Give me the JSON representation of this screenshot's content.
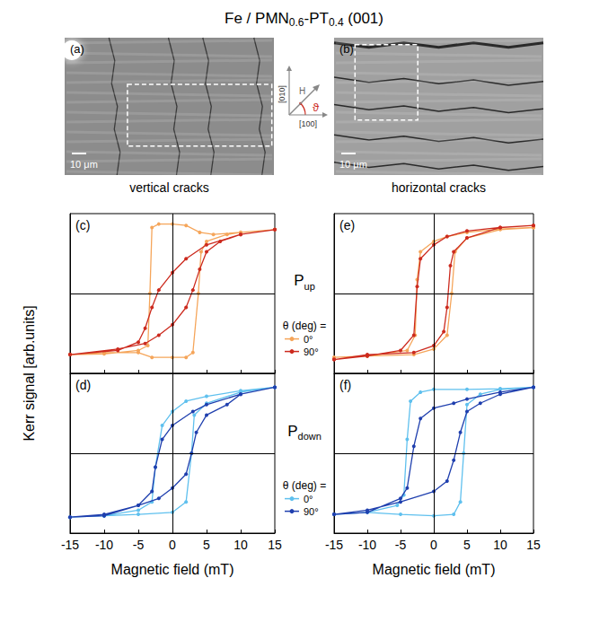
{
  "title_parts": [
    {
      "text": "Fe / PMN"
    },
    {
      "text": "0.6",
      "sub": true
    },
    {
      "text": "-PT"
    },
    {
      "text": "0.4",
      "sub": true
    },
    {
      "text": " (001)"
    }
  ],
  "images": [
    {
      "label": "(a)",
      "scale_bar": "10 μm",
      "caption": "vertical cracks",
      "cracks": "vertical"
    },
    {
      "label": "(b)",
      "scale_bar": "10 μm",
      "caption": "horizontal cracks",
      "cracks": "horizontal"
    }
  ],
  "inset": {
    "x_axis": "[100]",
    "y_axis": "[010]",
    "field": "H",
    "angle": "ϑ"
  },
  "y_label": "Kerr signal [arb.units]",
  "chart_data": [
    {
      "type": "line",
      "panel": "(c)",
      "annotation": {
        "text": "P",
        "sub": "up"
      },
      "legend": "right",
      "legend_title": "θ (deg) =",
      "xlim": [
        -15,
        15
      ],
      "xticks": [
        -15,
        -10,
        -5,
        0,
        5,
        10,
        15
      ],
      "ylim": [
        -1.15,
        1.15
      ],
      "tick_labels": false,
      "grid": false,
      "series": [
        {
          "name": "0°",
          "color": "#f5a55a",
          "marker": "circle",
          "x": [
            15,
            10,
            6,
            4,
            2,
            0,
            -2,
            -3,
            -3.3,
            -3.6,
            -5,
            -10,
            -15,
            -15,
            -10,
            -5,
            -3,
            0,
            2,
            3,
            3.8,
            4.2,
            5,
            8,
            10,
            15
          ],
          "values": [
            0.92,
            0.88,
            0.85,
            0.88,
            0.98,
            1.0,
            1.0,
            0.95,
            0,
            -0.75,
            -0.82,
            -0.87,
            -0.88,
            -0.88,
            -0.85,
            -0.85,
            -0.92,
            -0.92,
            -0.92,
            -0.85,
            0,
            0.6,
            0.75,
            0.85,
            0.88,
            0.92
          ]
        },
        {
          "name": "90°",
          "color": "#cc2a1e",
          "marker": "circle",
          "x": [
            15,
            10,
            5,
            2,
            0,
            -2,
            -3,
            -4,
            -5,
            -8,
            -15,
            -15,
            -8,
            -4,
            -2,
            0,
            2,
            3,
            4,
            5,
            7,
            10,
            15
          ],
          "values": [
            0.92,
            0.85,
            0.7,
            0.5,
            0.3,
            0.05,
            -0.2,
            -0.5,
            -0.7,
            -0.82,
            -0.88,
            -0.88,
            -0.8,
            -0.72,
            -0.6,
            -0.45,
            -0.2,
            0.05,
            0.35,
            0.6,
            0.75,
            0.85,
            0.92
          ]
        }
      ]
    },
    {
      "type": "line",
      "panel": "(d)",
      "annotation": {
        "text": "P",
        "sub": "down"
      },
      "legend": "right",
      "legend_title": "θ (deg) =",
      "xlabel": "Magnetic field (mT)",
      "xlim": [
        -15,
        15
      ],
      "xticks": [
        -15,
        -10,
        -5,
        0,
        5,
        10,
        15
      ],
      "ylim": [
        -1.15,
        1.15
      ],
      "tick_labels": "x",
      "grid": false,
      "series": [
        {
          "name": "0°",
          "color": "#5fc0ee",
          "marker": "circle",
          "x": [
            15,
            10,
            5,
            2,
            0,
            -1.5,
            -2.5,
            -3,
            -5,
            -10,
            -15,
            -15,
            -10,
            -5,
            0,
            2,
            2.8,
            3.2,
            5,
            10,
            15
          ],
          "values": [
            0.95,
            0.9,
            0.82,
            0.75,
            0.6,
            0.4,
            -0.2,
            -0.7,
            -0.82,
            -0.9,
            -0.92,
            -0.92,
            -0.9,
            -0.88,
            -0.85,
            -0.7,
            0,
            0.55,
            0.72,
            0.88,
            0.95
          ]
        },
        {
          "name": "90°",
          "color": "#1f3fae",
          "marker": "circle",
          "x": [
            15,
            10,
            5,
            3,
            0,
            -1.5,
            -2.5,
            -3,
            -5,
            -10,
            -15,
            -15,
            -10,
            -5,
            -2,
            0,
            2,
            2.8,
            3.5,
            5,
            8,
            10,
            15
          ],
          "values": [
            0.95,
            0.85,
            0.7,
            0.6,
            0.4,
            0.2,
            -0.2,
            -0.55,
            -0.75,
            -0.9,
            -0.92,
            -0.92,
            -0.88,
            -0.75,
            -0.65,
            -0.5,
            -0.3,
            0,
            0.3,
            0.55,
            0.7,
            0.85,
            0.95
          ]
        }
      ]
    },
    {
      "type": "line",
      "panel": "(e)",
      "xlim": [
        -15,
        15
      ],
      "xticks": [
        -15,
        -10,
        -5,
        0,
        5,
        10,
        15
      ],
      "ylim": [
        -1.15,
        1.15
      ],
      "tick_labels": false,
      "grid": false,
      "series": [
        {
          "name": "0°",
          "color": "#f5a55a",
          "marker": "circle",
          "x": [
            15,
            10,
            5,
            2,
            0,
            -2,
            -2.5,
            -2.8,
            -4,
            -10,
            -15,
            -15,
            -10,
            -3,
            0,
            2,
            2.7,
            3.2,
            5,
            10,
            15
          ],
          "values": [
            0.95,
            0.93,
            0.88,
            0.82,
            0.75,
            0.6,
            0.2,
            -0.6,
            -0.82,
            -0.9,
            -0.92,
            -0.92,
            -0.9,
            -0.88,
            -0.8,
            -0.6,
            0,
            0.6,
            0.8,
            0.92,
            0.95
          ]
        },
        {
          "name": "90°",
          "color": "#cc2a1e",
          "marker": "circle",
          "x": [
            15,
            10,
            5,
            2,
            0,
            -2,
            -2.5,
            -3,
            -5,
            -10,
            -15,
            -15,
            -10,
            -3,
            0,
            1.5,
            2,
            2.5,
            3,
            5,
            10,
            15
          ],
          "values": [
            0.98,
            0.95,
            0.9,
            0.82,
            0.7,
            0.5,
            0.1,
            -0.6,
            -0.82,
            -0.9,
            -0.95,
            -0.95,
            -0.88,
            -0.85,
            -0.75,
            -0.55,
            -0.2,
            0.4,
            0.6,
            0.8,
            0.95,
            0.98
          ]
        }
      ]
    },
    {
      "type": "line",
      "panel": "(f)",
      "xlabel": "Magnetic field (mT)",
      "xlim": [
        -15,
        15
      ],
      "xticks": [
        -15,
        -10,
        -5,
        0,
        5,
        10,
        15
      ],
      "ylim": [
        -1.15,
        1.15
      ],
      "tick_labels": "x",
      "grid": false,
      "series": [
        {
          "name": "0°",
          "color": "#5fc0ee",
          "marker": "circle",
          "x": [
            15,
            10,
            5,
            0,
            -2,
            -3.5,
            -4,
            -4.5,
            -5.5,
            -10,
            -15,
            -15,
            -10,
            -5,
            0,
            3,
            4,
            4.5,
            5,
            7,
            10,
            15
          ],
          "values": [
            0.95,
            0.93,
            0.92,
            0.92,
            0.88,
            0.75,
            0.2,
            -0.6,
            -0.75,
            -0.85,
            -0.88,
            -0.88,
            -0.85,
            -0.88,
            -0.9,
            -0.88,
            -0.7,
            0,
            0.7,
            0.85,
            0.92,
            0.95
          ]
        },
        {
          "name": "90°",
          "color": "#1f3fae",
          "marker": "circle",
          "x": [
            15,
            10,
            5,
            3,
            0,
            -2,
            -3,
            -4,
            -5,
            -10,
            -15,
            -15,
            -10,
            -5,
            0,
            2,
            3,
            4,
            5,
            7,
            10,
            15
          ],
          "values": [
            0.95,
            0.88,
            0.78,
            0.72,
            0.65,
            0.5,
            0.1,
            -0.5,
            -0.65,
            -0.85,
            -0.88,
            -0.88,
            -0.82,
            -0.7,
            -0.55,
            -0.4,
            -0.1,
            0.3,
            0.6,
            0.72,
            0.85,
            0.95
          ]
        }
      ]
    }
  ]
}
